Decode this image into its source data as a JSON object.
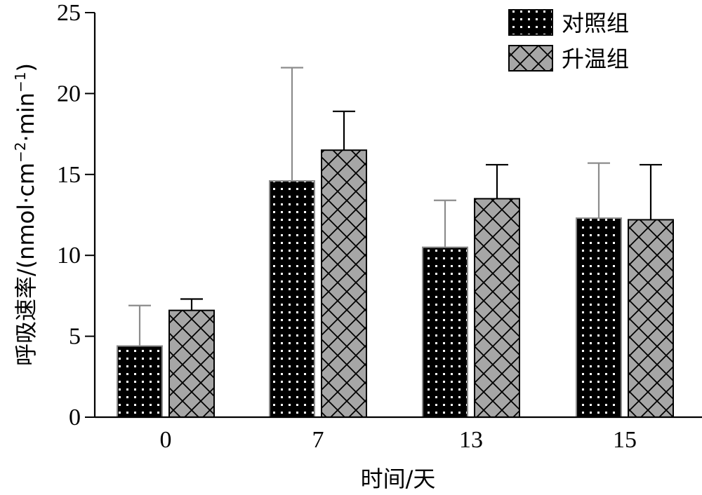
{
  "chart_data": {
    "type": "bar",
    "categories": [
      "0",
      "7",
      "13",
      "15"
    ],
    "xlabel": "时间/天",
    "ylabel": "呼吸速率/(nmol·cm",
    "ylabel_sup1": "−2",
    "ylabel_mid": "·min",
    "ylabel_sup2": "−1",
    "ylabel_end": ")",
    "ylim": [
      0,
      25
    ],
    "yticks": [
      "0",
      "5",
      "10",
      "15",
      "20",
      "25"
    ],
    "series": [
      {
        "name": "对照组",
        "values": [
          4.4,
          14.6,
          10.5,
          12.3
        ],
        "errors": [
          2.5,
          7.0,
          2.9,
          3.4
        ],
        "pattern": "dots",
        "fill": "#000000",
        "error_color": "#8c8c8c"
      },
      {
        "name": "升温组",
        "values": [
          6.6,
          16.5,
          13.5,
          12.2
        ],
        "errors": [
          0.7,
          2.4,
          2.1,
          3.4
        ],
        "pattern": "crosshatch",
        "fill": "#a6a6a6",
        "error_color": "#000000"
      }
    ],
    "legend_position": "top-right"
  }
}
